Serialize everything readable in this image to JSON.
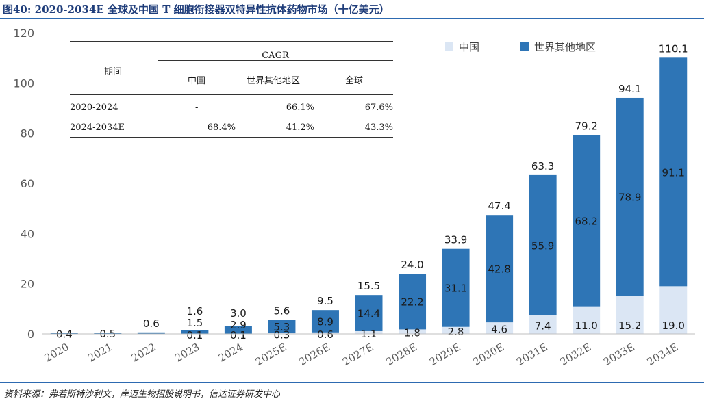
{
  "figure": {
    "title": "图40: 2020-2034E 全球及中国 T 细胞衔接器双特异性抗体药物市场（十亿美元）",
    "source": "资料来源：弗若斯特沙利文，岸迈生物招股说明书，信达证券研发中心"
  },
  "cagr_table": {
    "header_group": "CAGR",
    "row_header": "期间",
    "columns": [
      "中国",
      "世界其他地区",
      "全球"
    ],
    "rows": [
      {
        "period": "2020-2024",
        "china": "-",
        "rest": "66.1%",
        "global": "67.6%"
      },
      {
        "period": "2024-2034E",
        "china": "68.4%",
        "rest": "41.2%",
        "global": "43.3%"
      }
    ]
  },
  "chart_data": {
    "type": "bar",
    "stacked": true,
    "categories": [
      "2020",
      "2021",
      "2022",
      "2023",
      "2024",
      "2025E",
      "2026E",
      "2027E",
      "2028E",
      "2029E",
      "2030E",
      "2031E",
      "2032E",
      "2033E",
      "2034E"
    ],
    "series": [
      {
        "name": "中国",
        "color": "#dbe6f4",
        "values": [
          0,
          0,
          0,
          0.1,
          0.1,
          0.3,
          0.6,
          1.1,
          1.8,
          2.8,
          4.6,
          7.4,
          11.0,
          15.2,
          19.0
        ]
      },
      {
        "name": "世界其他地区",
        "color": "#2e75b6",
        "values": [
          0.4,
          0.5,
          0.6,
          1.5,
          2.9,
          5.3,
          8.9,
          14.4,
          22.2,
          31.1,
          42.8,
          55.9,
          68.2,
          78.9,
          91.1
        ]
      }
    ],
    "bottom_labels": [
      "",
      "",
      "",
      "0.1",
      "0.1",
      "0.3",
      "0.6",
      "1.1",
      "1.8",
      "2.8",
      "4.6",
      "7.4",
      "11.0",
      "15.2",
      "19.0"
    ],
    "middle_labels": [
      "0.4",
      "0.5",
      "",
      "1.5",
      "2.9",
      "5.3",
      "8.9",
      "14.4",
      "22.2",
      "31.1",
      "42.8",
      "55.9",
      "68.2",
      "78.9",
      "91.1"
    ],
    "totals": [
      "",
      "",
      "0.6",
      "1.6",
      "3.0",
      "5.6",
      "9.5",
      "15.5",
      "24.0",
      "33.9",
      "47.4",
      "63.3",
      "79.2",
      "94.1",
      "110.1"
    ],
    "ylim": [
      0,
      120
    ],
    "yticks": [
      "0",
      "20",
      "40",
      "60",
      "80",
      "100",
      "120"
    ],
    "legend_position": "top-right",
    "grid": false
  }
}
